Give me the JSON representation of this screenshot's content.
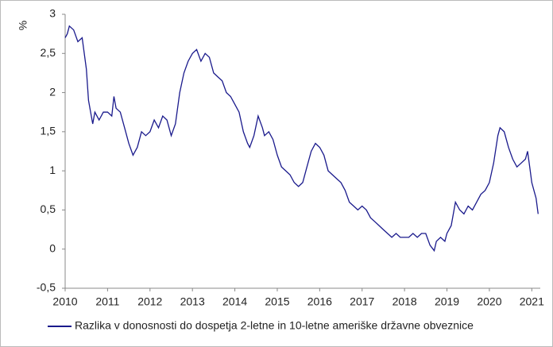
{
  "chart_data": {
    "type": "line",
    "y_label": "%",
    "x": [
      2010.0,
      2010.05,
      2010.1,
      2010.2,
      2010.3,
      2010.4,
      2010.5,
      2010.55,
      2010.65,
      2010.7,
      2010.8,
      2010.9,
      2011.0,
      2011.1,
      2011.15,
      2011.2,
      2011.3,
      2011.4,
      2011.5,
      2011.6,
      2011.7,
      2011.8,
      2011.9,
      2012.0,
      2012.1,
      2012.2,
      2012.3,
      2012.4,
      2012.5,
      2012.6,
      2012.7,
      2012.8,
      2012.9,
      2013.0,
      2013.1,
      2013.2,
      2013.3,
      2013.4,
      2013.5,
      2013.6,
      2013.7,
      2013.8,
      2013.9,
      2014.0,
      2014.1,
      2014.2,
      2014.3,
      2014.35,
      2014.45,
      2014.55,
      2014.65,
      2014.7,
      2014.8,
      2014.9,
      2015.0,
      2015.1,
      2015.2,
      2015.3,
      2015.4,
      2015.5,
      2015.6,
      2015.7,
      2015.8,
      2015.9,
      2016.0,
      2016.1,
      2016.2,
      2016.3,
      2016.4,
      2016.5,
      2016.6,
      2016.7,
      2016.8,
      2016.9,
      2017.0,
      2017.1,
      2017.2,
      2017.3,
      2017.4,
      2017.5,
      2017.6,
      2017.7,
      2017.8,
      2017.9,
      2018.0,
      2018.1,
      2018.2,
      2018.3,
      2018.4,
      2018.5,
      2018.6,
      2018.7,
      2018.75,
      2018.85,
      2018.95,
      2019.0,
      2019.1,
      2019.2,
      2019.3,
      2019.4,
      2019.5,
      2019.6,
      2019.7,
      2019.8,
      2019.9,
      2020.0,
      2020.1,
      2020.2,
      2020.25,
      2020.35,
      2020.45,
      2020.55,
      2020.65,
      2020.75,
      2020.85,
      2020.9,
      2020.95,
      2021.0,
      2021.05,
      2021.1,
      2021.15
    ],
    "series": [
      {
        "name": "Razlika v donosnosti do dospetja 2-letne in 10-letne ameriške državne obveznice",
        "color": "#1a1a8c",
        "values": [
          2.7,
          2.75,
          2.85,
          2.8,
          2.65,
          2.7,
          2.3,
          1.9,
          1.6,
          1.75,
          1.65,
          1.75,
          1.75,
          1.7,
          1.95,
          1.8,
          1.75,
          1.55,
          1.35,
          1.2,
          1.3,
          1.5,
          1.45,
          1.5,
          1.65,
          1.55,
          1.7,
          1.65,
          1.45,
          1.6,
          2.0,
          2.25,
          2.4,
          2.5,
          2.55,
          2.4,
          2.5,
          2.45,
          2.25,
          2.2,
          2.15,
          2.0,
          1.95,
          1.85,
          1.75,
          1.5,
          1.35,
          1.3,
          1.45,
          1.7,
          1.55,
          1.45,
          1.5,
          1.4,
          1.2,
          1.05,
          1.0,
          0.95,
          0.85,
          0.8,
          0.85,
          1.05,
          1.25,
          1.35,
          1.3,
          1.2,
          1.0,
          0.95,
          0.9,
          0.85,
          0.75,
          0.6,
          0.55,
          0.5,
          0.55,
          0.5,
          0.4,
          0.35,
          0.3,
          0.25,
          0.2,
          0.15,
          0.2,
          0.15,
          0.15,
          0.15,
          0.2,
          0.15,
          0.2,
          0.2,
          0.05,
          -0.02,
          0.1,
          0.15,
          0.1,
          0.2,
          0.3,
          0.6,
          0.5,
          0.45,
          0.55,
          0.5,
          0.6,
          0.7,
          0.75,
          0.85,
          1.1,
          1.45,
          1.55,
          1.5,
          1.3,
          1.15,
          1.05,
          1.1,
          1.15,
          1.25,
          1.05,
          0.85,
          0.75,
          0.65,
          0.45
        ]
      }
    ],
    "xlim": [
      2010,
      2021.2
    ],
    "xticks": [
      2010,
      2011,
      2012,
      2013,
      2014,
      2015,
      2016,
      2017,
      2018,
      2019,
      2020,
      2021
    ],
    "ylim": [
      -0.5,
      3
    ],
    "yticks": [
      {
        "value": -0.5,
        "label": "-0,5"
      },
      0,
      {
        "value": 0.5,
        "label": "0,5"
      },
      1,
      {
        "value": 1.5,
        "label": "1,5"
      },
      2,
      {
        "value": 2.5,
        "label": "2,5"
      },
      3
    ],
    "grid": false,
    "legend": "bottom"
  }
}
